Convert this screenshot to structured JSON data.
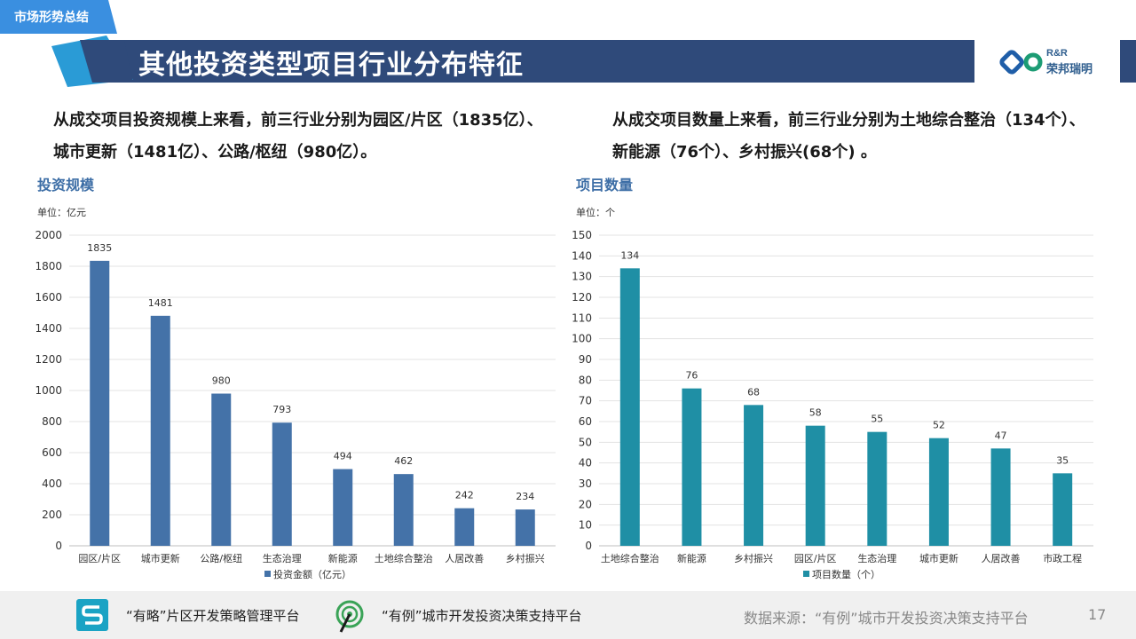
{
  "header": {
    "tag": "市场形势总结",
    "title": "其他投资类型项目行业分布特征",
    "logo_top": "R&R",
    "logo_bottom": "荣邦瑞明"
  },
  "summary": {
    "left_line1": "从成交项目投资规模上来看，前三行业分别为园区/片区（1835亿）、",
    "left_line2": "城市更新（1481亿）、公路/枢纽（980亿）。",
    "right_line1": "从成交项目数量上来看，前三行业分别为土地综合整治（134个）、",
    "right_line2": "新能源（76个）、乡村振兴(68个) 。"
  },
  "charts": {
    "left_title": "投资规模",
    "left_unit": "单位：亿元",
    "right_title": "项目数量",
    "right_unit": "单位：个"
  },
  "chart_data": [
    {
      "type": "bar",
      "title": "投资规模",
      "unit": "单位：亿元",
      "categories": [
        "园区/片区",
        "城市更新",
        "公路/枢纽",
        "生态治理",
        "新能源",
        "土地综合整治",
        "人居改善",
        "乡村振兴"
      ],
      "series": [
        {
          "name": "投资金额（亿元）",
          "values": [
            1835,
            1481,
            980,
            793,
            494,
            462,
            242,
            234
          ]
        }
      ],
      "ylim": [
        0,
        2000
      ],
      "yticks": [
        0,
        200,
        400,
        600,
        800,
        1000,
        1200,
        1400,
        1600,
        1800,
        2000
      ],
      "color": "#4472a8",
      "grid": true,
      "legend": "bottom"
    },
    {
      "type": "bar",
      "title": "项目数量",
      "unit": "单位：个",
      "categories": [
        "土地综合整治",
        "新能源",
        "乡村振兴",
        "园区/片区",
        "生态治理",
        "城市更新",
        "人居改善",
        "市政工程"
      ],
      "series": [
        {
          "name": "项目数量（个）",
          "values": [
            134,
            76,
            68,
            58,
            55,
            52,
            47,
            35
          ]
        }
      ],
      "ylim": [
        0,
        150
      ],
      "yticks": [
        0,
        10,
        20,
        30,
        40,
        50,
        60,
        70,
        80,
        90,
        100,
        110,
        120,
        130,
        140,
        150
      ],
      "color": "#1f8fa5",
      "grid": true,
      "legend": "bottom"
    }
  ],
  "footer": {
    "platform1": "“有略”片区开发策略管理平台",
    "platform2": "“有例”城市开发投资决策支持平台",
    "source": "数据来源：“有例”城市开发投资决策支持平台",
    "page": "17"
  },
  "colors": {
    "banner": "#2f4a7a",
    "accent_blue": "#2a9bd6",
    "tag_blue": "#3a8fe0",
    "logo_blue": "#1f5ea8",
    "logo_green": "#1c9c74"
  }
}
